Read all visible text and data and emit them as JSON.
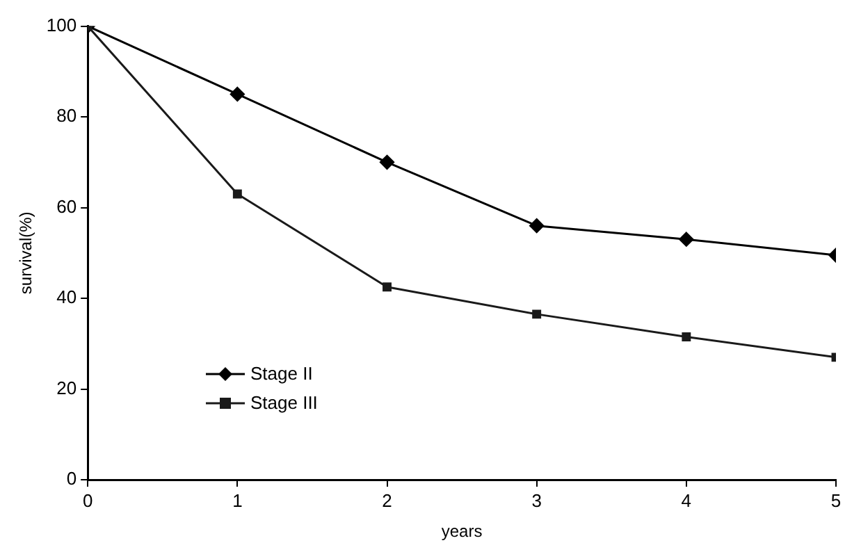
{
  "chart_data": {
    "type": "line",
    "xlabel": "years",
    "ylabel": "survival(%)",
    "x": [
      0,
      1,
      2,
      3,
      4,
      5
    ],
    "series": [
      {
        "name": "Stage II",
        "color": "#000000",
        "marker": "diamond",
        "values": [
          100,
          85,
          70,
          56,
          53,
          49.5
        ]
      },
      {
        "name": "Stage III",
        "color": "#1a1a1a",
        "marker": "square",
        "values": [
          100,
          63,
          42.5,
          36.5,
          31.5,
          27
        ]
      }
    ],
    "xlim": [
      0,
      5
    ],
    "xticks": [
      0,
      1,
      2,
      3,
      4,
      5
    ],
    "ylim": [
      0,
      100
    ],
    "yticks": [
      0,
      20,
      40,
      60,
      80,
      100
    ],
    "grid": false,
    "legend": "bottom left",
    "line_style": "solid"
  }
}
